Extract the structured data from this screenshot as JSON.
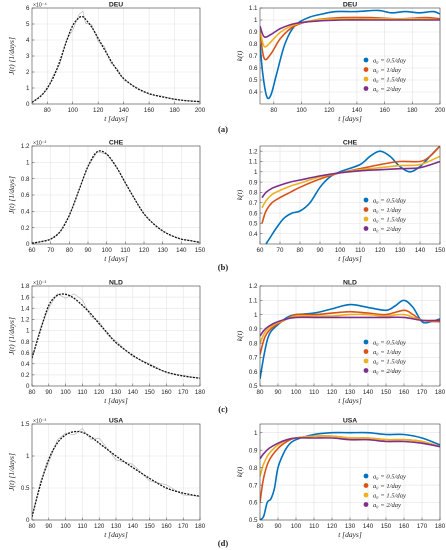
{
  "chart_data": [
    {
      "id": "a-left",
      "type": "line",
      "title": "DEU",
      "xlabel": "t [days]",
      "ylabel": "J(t) [1/days]",
      "exponent": "×10⁻⁴",
      "xlim": [
        68,
        200
      ],
      "ylim": [
        0,
        6
      ],
      "xticks": [
        "80",
        "100",
        "120",
        "140",
        "160",
        "180",
        "200"
      ],
      "yticks": [
        "0",
        "1",
        "2",
        "3",
        "4",
        "5",
        "6"
      ],
      "x": [
        68,
        75,
        80,
        85,
        90,
        95,
        100,
        105,
        108,
        110,
        115,
        120,
        125,
        130,
        135,
        140,
        150,
        160,
        170,
        180,
        190,
        200
      ],
      "y": [
        0.1,
        0.5,
        1.0,
        1.7,
        2.7,
        3.9,
        4.9,
        5.4,
        5.45,
        5.3,
        4.8,
        4.1,
        3.4,
        2.7,
        2.1,
        1.6,
        1.0,
        0.65,
        0.45,
        0.3,
        0.2,
        0.15
      ],
      "noise": [
        0,
        0.05,
        -0.1,
        0.15,
        -0.2,
        0.1,
        -0.3,
        0.2,
        0.35,
        -0.25,
        0.15,
        -0.2,
        0.2,
        -0.15,
        0.1,
        -0.1,
        0.05,
        -0.05,
        0.05,
        0,
        0.02,
        0
      ]
    },
    {
      "id": "a-right",
      "type": "line",
      "title": "DEU",
      "xlabel": "t [days]",
      "ylabel": "k(t)",
      "xlim": [
        70,
        200
      ],
      "ylim": [
        0.3,
        1.1
      ],
      "xticks": [
        "80",
        "100",
        "120",
        "140",
        "160",
        "180",
        "200"
      ],
      "yticks": [
        "0.4",
        "0.5",
        "0.6",
        "0.7",
        "0.8",
        "0.9",
        "1",
        "1.1"
      ],
      "series": [
        {
          "name": "a₀ = 0.5/day",
          "color": "#0072bd",
          "x": [
            70,
            72,
            75,
            78,
            82,
            88,
            95,
            105,
            115,
            125,
            140,
            155,
            165,
            175,
            185,
            195,
            200
          ],
          "y": [
            0.8,
            0.55,
            0.36,
            0.38,
            0.55,
            0.8,
            0.95,
            1.02,
            1.05,
            1.07,
            1.07,
            1.08,
            1.06,
            1.07,
            1.06,
            1.07,
            1.05
          ]
        },
        {
          "name": "a₀ = 1/day",
          "color": "#d95319",
          "x": [
            70,
            73,
            78,
            85,
            95,
            110,
            130,
            150,
            170,
            190,
            200
          ],
          "y": [
            0.9,
            0.68,
            0.72,
            0.85,
            0.95,
            1.0,
            1.02,
            1.02,
            1.01,
            1.02,
            1.01
          ]
        },
        {
          "name": "a₀ = 1.5/day",
          "color": "#edb120",
          "x": [
            70,
            73,
            78,
            85,
            95,
            110,
            130,
            150,
            170,
            190,
            200
          ],
          "y": [
            0.92,
            0.78,
            0.82,
            0.9,
            0.96,
            1.0,
            1.01,
            1.01,
            1.01,
            1.01,
            1.0
          ]
        },
        {
          "name": "a₀ = 2/day",
          "color": "#7e2f8e",
          "x": [
            70,
            73,
            78,
            85,
            95,
            110,
            130,
            150,
            170,
            190,
            200
          ],
          "y": [
            0.95,
            0.86,
            0.88,
            0.93,
            0.97,
            0.99,
            1.0,
            1.0,
            1.0,
            1.0,
            1.0
          ]
        }
      ]
    },
    {
      "id": "b-left",
      "type": "line",
      "title": "CHE",
      "xlabel": "t [days]",
      "ylabel": "J(t) [1/days]",
      "exponent": "×10⁻³",
      "xlim": [
        60,
        150
      ],
      "ylim": [
        0,
        1.2
      ],
      "xticks": [
        "60",
        "70",
        "80",
        "90",
        "100",
        "110",
        "120",
        "130",
        "140",
        "150"
      ],
      "yticks": [
        "0",
        "0.2",
        "0.4",
        "0.6",
        "0.8",
        "1",
        "1.2"
      ],
      "x": [
        60,
        65,
        70,
        75,
        80,
        85,
        90,
        95,
        100,
        105,
        110,
        115,
        120,
        125,
        130,
        135,
        140,
        145,
        150
      ],
      "y": [
        0.01,
        0.03,
        0.06,
        0.15,
        0.35,
        0.65,
        0.95,
        1.13,
        1.1,
        0.95,
        0.75,
        0.55,
        0.37,
        0.25,
        0.16,
        0.1,
        0.06,
        0.04,
        0.02
      ],
      "noise": [
        0,
        0,
        0,
        0,
        0,
        0,
        0,
        0,
        0,
        0,
        0,
        0,
        0,
        0,
        0,
        0,
        0,
        0,
        0
      ]
    },
    {
      "id": "b-right",
      "type": "line",
      "title": "CHE",
      "xlabel": "t [days]",
      "ylabel": "k(t)",
      "xlim": [
        60,
        150
      ],
      "ylim": [
        0.3,
        1.25
      ],
      "xticks": [
        "60",
        "70",
        "80",
        "90",
        "100",
        "110",
        "120",
        "130",
        "140",
        "150"
      ],
      "yticks": [
        "0.4",
        "0.5",
        "0.6",
        "0.7",
        "0.8",
        "0.9",
        "1",
        "1.1",
        "1.2"
      ],
      "series": [
        {
          "name": "a₀ = 0.5/day",
          "color": "#0072bd",
          "x": [
            63,
            65,
            68,
            72,
            76,
            80,
            85,
            90,
            95,
            100,
            110,
            115,
            120,
            125,
            130,
            135,
            140,
            145,
            150
          ],
          "y": [
            0.3,
            0.36,
            0.45,
            0.55,
            0.6,
            0.62,
            0.7,
            0.85,
            0.95,
            1.0,
            1.07,
            1.15,
            1.2,
            1.15,
            1.05,
            1.0,
            1.05,
            1.15,
            1.25
          ]
        },
        {
          "name": "a₀ = 1/day",
          "color": "#d95319",
          "x": [
            61,
            63,
            66,
            70,
            75,
            80,
            90,
            100,
            110,
            120,
            130,
            140,
            145,
            150
          ],
          "y": [
            0.5,
            0.62,
            0.7,
            0.75,
            0.8,
            0.85,
            0.93,
            0.99,
            1.03,
            1.07,
            1.1,
            1.1,
            1.15,
            1.25
          ]
        },
        {
          "name": "a₀ = 1.5/day",
          "color": "#edb120",
          "x": [
            61,
            63,
            66,
            70,
            75,
            80,
            90,
            100,
            110,
            120,
            130,
            140,
            150
          ],
          "y": [
            0.65,
            0.72,
            0.78,
            0.82,
            0.86,
            0.89,
            0.95,
            0.99,
            1.02,
            1.04,
            1.06,
            1.07,
            1.15
          ]
        },
        {
          "name": "a₀ = 2/day",
          "color": "#7e2f8e",
          "x": [
            61,
            63,
            66,
            70,
            75,
            80,
            90,
            100,
            110,
            120,
            130,
            140,
            150
          ],
          "y": [
            0.75,
            0.8,
            0.84,
            0.87,
            0.9,
            0.92,
            0.96,
            0.99,
            1.01,
            1.02,
            1.03,
            1.04,
            1.1
          ]
        }
      ]
    },
    {
      "id": "c-left",
      "type": "line",
      "title": "NLD",
      "xlabel": "t [days]",
      "ylabel": "J(t) [1/days]",
      "exponent": "×10⁻³",
      "xlim": [
        80,
        180
      ],
      "ylim": [
        0,
        1.8
      ],
      "xticks": [
        "80",
        "90",
        "100",
        "110",
        "120",
        "130",
        "140",
        "150",
        "160",
        "170",
        "180"
      ],
      "yticks": [
        "0",
        "0.2",
        "0.4",
        "0.6",
        "0.8",
        "1",
        "1.2",
        "1.4",
        "1.6",
        "1.8"
      ],
      "x": [
        80,
        85,
        90,
        95,
        100,
        105,
        110,
        115,
        120,
        125,
        130,
        140,
        150,
        160,
        170,
        180
      ],
      "y": [
        0.5,
        1.0,
        1.45,
        1.63,
        1.65,
        1.58,
        1.45,
        1.3,
        1.12,
        0.95,
        0.78,
        0.55,
        0.38,
        0.25,
        0.18,
        0.14
      ],
      "noise": [
        0,
        0.05,
        -0.05,
        0.03,
        -0.07,
        0.08,
        0.1,
        -0.05,
        0.04,
        -0.03,
        0.03,
        -0.02,
        0.02,
        -0.01,
        0.01,
        0
      ]
    },
    {
      "id": "c-right",
      "type": "line",
      "title": "NLD",
      "xlabel": "t [days]",
      "ylabel": "k(t)",
      "xlim": [
        80,
        180
      ],
      "ylim": [
        0.5,
        1.2
      ],
      "xticks": [
        "80",
        "90",
        "100",
        "110",
        "120",
        "130",
        "140",
        "150",
        "160",
        "170",
        "180"
      ],
      "yticks": [
        "0.5",
        "0.6",
        "0.7",
        "0.8",
        "0.9",
        "1",
        "1.1",
        "1.2"
      ],
      "series": [
        {
          "name": "a₀ = 0.5/day",
          "color": "#0072bd",
          "x": [
            80,
            82,
            84,
            86,
            90,
            95,
            100,
            110,
            120,
            130,
            140,
            150,
            155,
            160,
            165,
            170,
            175,
            180
          ],
          "y": [
            0.55,
            0.7,
            0.82,
            0.88,
            0.93,
            0.98,
            1.0,
            1.01,
            1.04,
            1.07,
            1.05,
            1.03,
            1.06,
            1.1,
            1.05,
            0.95,
            0.95,
            0.97
          ]
        },
        {
          "name": "a₀ = 1/day",
          "color": "#d95319",
          "x": [
            80,
            83,
            88,
            95,
            100,
            110,
            120,
            130,
            140,
            150,
            160,
            165,
            170,
            180
          ],
          "y": [
            0.72,
            0.85,
            0.92,
            0.97,
            1.0,
            1.0,
            1.01,
            1.02,
            1.01,
            1.0,
            1.03,
            1.0,
            0.96,
            0.95
          ]
        },
        {
          "name": "a₀ = 1.5/day",
          "color": "#edb120",
          "x": [
            80,
            83,
            88,
            95,
            100,
            110,
            120,
            130,
            140,
            150,
            160,
            170,
            180
          ],
          "y": [
            0.8,
            0.88,
            0.93,
            0.97,
            0.99,
            0.99,
            0.99,
            1.0,
            1.0,
            0.99,
            1.0,
            0.96,
            0.96
          ]
        },
        {
          "name": "a₀ = 2/day",
          "color": "#7e2f8e",
          "x": [
            80,
            83,
            88,
            95,
            100,
            110,
            120,
            130,
            140,
            150,
            160,
            170,
            180
          ],
          "y": [
            0.85,
            0.9,
            0.94,
            0.97,
            0.98,
            0.98,
            0.98,
            0.98,
            0.98,
            0.98,
            0.98,
            0.96,
            0.96
          ]
        }
      ]
    },
    {
      "id": "d-left",
      "type": "line",
      "title": "USA",
      "xlabel": "t [days]",
      "ylabel": "J(t) [1/days]",
      "exponent": "×10⁻³",
      "xlim": [
        80,
        180
      ],
      "ylim": [
        0,
        1.5
      ],
      "xticks": [
        "80",
        "90",
        "100",
        "110",
        "120",
        "130",
        "140",
        "150",
        "160",
        "170",
        "180"
      ],
      "yticks": [
        "0",
        "0.5",
        "1",
        "1.5"
      ],
      "x": [
        80,
        85,
        90,
        95,
        100,
        105,
        110,
        115,
        120,
        130,
        140,
        150,
        160,
        170,
        180
      ],
      "y": [
        0.05,
        0.55,
        0.95,
        1.2,
        1.33,
        1.38,
        1.37,
        1.3,
        1.2,
        1.0,
        0.82,
        0.65,
        0.5,
        0.42,
        0.37
      ],
      "noise": [
        0,
        0.05,
        -0.05,
        0.05,
        0.03,
        -0.05,
        0.06,
        -0.04,
        0.08,
        -0.06,
        0.05,
        -0.04,
        0.05,
        -0.03,
        0
      ]
    },
    {
      "id": "d-right",
      "type": "line",
      "title": "USA",
      "xlabel": "t [days]",
      "ylabel": "k(t)",
      "xlim": [
        80,
        180
      ],
      "ylim": [
        0.5,
        1.05
      ],
      "xticks": [
        "80",
        "90",
        "100",
        "110",
        "120",
        "130",
        "140",
        "150",
        "160",
        "170",
        "180"
      ],
      "yticks": [
        "0.5",
        "0.6",
        "0.7",
        "0.8",
        "0.9",
        "1"
      ],
      "series": [
        {
          "name": "a₀ = 0.5/day",
          "color": "#0072bd",
          "x": [
            80,
            82,
            84,
            86,
            88,
            90,
            93,
            96,
            100,
            110,
            120,
            130,
            140,
            150,
            160,
            170,
            180
          ],
          "y": [
            0.5,
            0.52,
            0.6,
            0.62,
            0.68,
            0.8,
            0.88,
            0.93,
            0.96,
            0.99,
            1.0,
            1.0,
            1.0,
            0.99,
            0.99,
            0.97,
            0.93
          ]
        },
        {
          "name": "a₀ = 1/day",
          "color": "#d95319",
          "x": [
            80,
            82,
            85,
            90,
            95,
            100,
            110,
            120,
            130,
            140,
            150,
            160,
            170,
            180
          ],
          "y": [
            0.6,
            0.74,
            0.84,
            0.91,
            0.95,
            0.97,
            0.98,
            0.98,
            0.97,
            0.97,
            0.96,
            0.96,
            0.95,
            0.92
          ]
        },
        {
          "name": "a₀ = 1.5/day",
          "color": "#edb120",
          "x": [
            80,
            82,
            85,
            90,
            95,
            100,
            110,
            120,
            130,
            140,
            150,
            160,
            170,
            180
          ],
          "y": [
            0.75,
            0.82,
            0.88,
            0.93,
            0.96,
            0.97,
            0.98,
            0.98,
            0.97,
            0.97,
            0.96,
            0.96,
            0.95,
            0.92
          ]
        },
        {
          "name": "a₀ = 2/day",
          "color": "#7e2f8e",
          "x": [
            80,
            82,
            85,
            90,
            95,
            100,
            110,
            120,
            130,
            140,
            150,
            160,
            170,
            180
          ],
          "y": [
            0.85,
            0.88,
            0.91,
            0.94,
            0.96,
            0.97,
            0.97,
            0.97,
            0.96,
            0.96,
            0.95,
            0.95,
            0.94,
            0.92
          ]
        }
      ]
    }
  ],
  "panel_labels": [
    "(a)",
    "(b)",
    "(c)",
    "(d)"
  ],
  "legend_entries": [
    "a₀ = 0.5/day",
    "a₀ = 1/day",
    "a₀ = 1.5/day",
    "a₀ = 2/day"
  ]
}
